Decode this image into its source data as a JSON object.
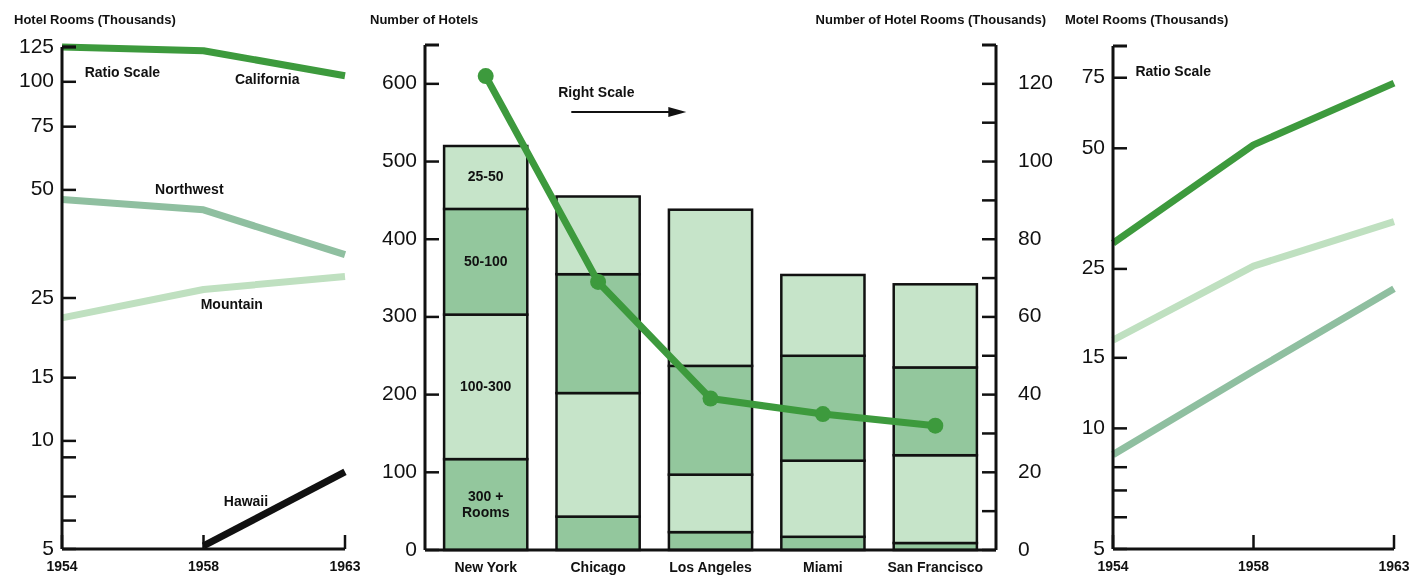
{
  "chart_data": [
    {
      "type": "line",
      "ylabel": "Hotel Rooms (Thousands)",
      "categories": [
        "1954",
        "1958",
        "1963"
      ],
      "log": "y",
      "ylim": [
        5,
        125
      ],
      "yticks": [
        5,
        {
          "value": 6,
          "label": null
        },
        {
          "value": 7,
          "label": null
        },
        {
          "value": 9,
          "label": null
        },
        10,
        15,
        25,
        50,
        75,
        100,
        125
      ],
      "annotations": [
        "Ratio Scale"
      ],
      "series": [
        {
          "name": "California",
          "color": "#3d9a3d",
          "values": [
            125,
            122,
            104
          ]
        },
        {
          "name": "Northwest",
          "color": "#8fbfa0",
          "values": [
            47,
            44,
            33
          ]
        },
        {
          "name": "Mountain",
          "color": "#bfe0c0",
          "values": [
            22,
            26.4,
            28.7
          ]
        },
        {
          "name": "Hawaii",
          "color": "#111111",
          "values": [
            null,
            5.1,
            8.2
          ]
        }
      ]
    },
    {
      "type": "bar",
      "stacked": true,
      "ylabel": "Number of Hotels",
      "y2label": "Number of Hotel Rooms (Thousands)",
      "categories": [
        "New York",
        "Chicago",
        "Los Angeles",
        "Miami",
        "San Francisco"
      ],
      "ylim": [
        0,
        650
      ],
      "yticks": [
        0,
        100,
        200,
        300,
        400,
        500,
        600
      ],
      "y2lim": [
        0,
        130
      ],
      "y2ticks": [
        0,
        {
          "value": 10,
          "label": null
        },
        20,
        {
          "value": 30,
          "label": null
        },
        40,
        {
          "value": 50,
          "label": null
        },
        60,
        {
          "value": 70,
          "label": null
        },
        80,
        {
          "value": 90,
          "label": null
        },
        100,
        {
          "value": 110,
          "label": null
        },
        120
      ],
      "annotations": [
        "Right Scale"
      ],
      "series": [
        {
          "name": "300 + Rooms",
          "color": "#93c79d",
          "values": [
            117,
            43,
            23,
            17,
            9
          ]
        },
        {
          "name": "100-300",
          "color": "#c6e4c9",
          "values": [
            186,
            159,
            74,
            98,
            113
          ]
        },
        {
          "name": "50-100",
          "color": "#93c79d",
          "values": [
            136,
            153,
            140,
            135,
            113
          ]
        },
        {
          "name": "25-50",
          "color": "#c6e4c9",
          "values": [
            81,
            100,
            201,
            104,
            107
          ]
        },
        {
          "type": "line",
          "axis": "y2",
          "marker": "circle",
          "color": "#3d9a3d",
          "values": [
            122,
            69,
            39,
            35,
            32
          ]
        }
      ]
    },
    {
      "type": "line",
      "ylabel": "Motel Rooms (Thousands)",
      "categories": [
        "1954",
        "1958",
        "1963"
      ],
      "log": "y",
      "ylim": [
        5,
        90
      ],
      "yticks": [
        5,
        {
          "value": 6,
          "label": null
        },
        {
          "value": 7,
          "label": null
        },
        {
          "value": 8,
          "label": null
        },
        10,
        15,
        25,
        50,
        75
      ],
      "annotations": [
        "Ratio Scale"
      ],
      "series": [
        {
          "color": "#3d9a3d",
          "values": [
            29,
            51,
            72.7
          ]
        },
        {
          "color": "#bfe0c0",
          "values": [
            16.6,
            25.4,
            32.8
          ]
        },
        {
          "color": "#8fbfa0",
          "values": [
            8.6,
            13.9,
            22.3
          ]
        }
      ]
    }
  ]
}
